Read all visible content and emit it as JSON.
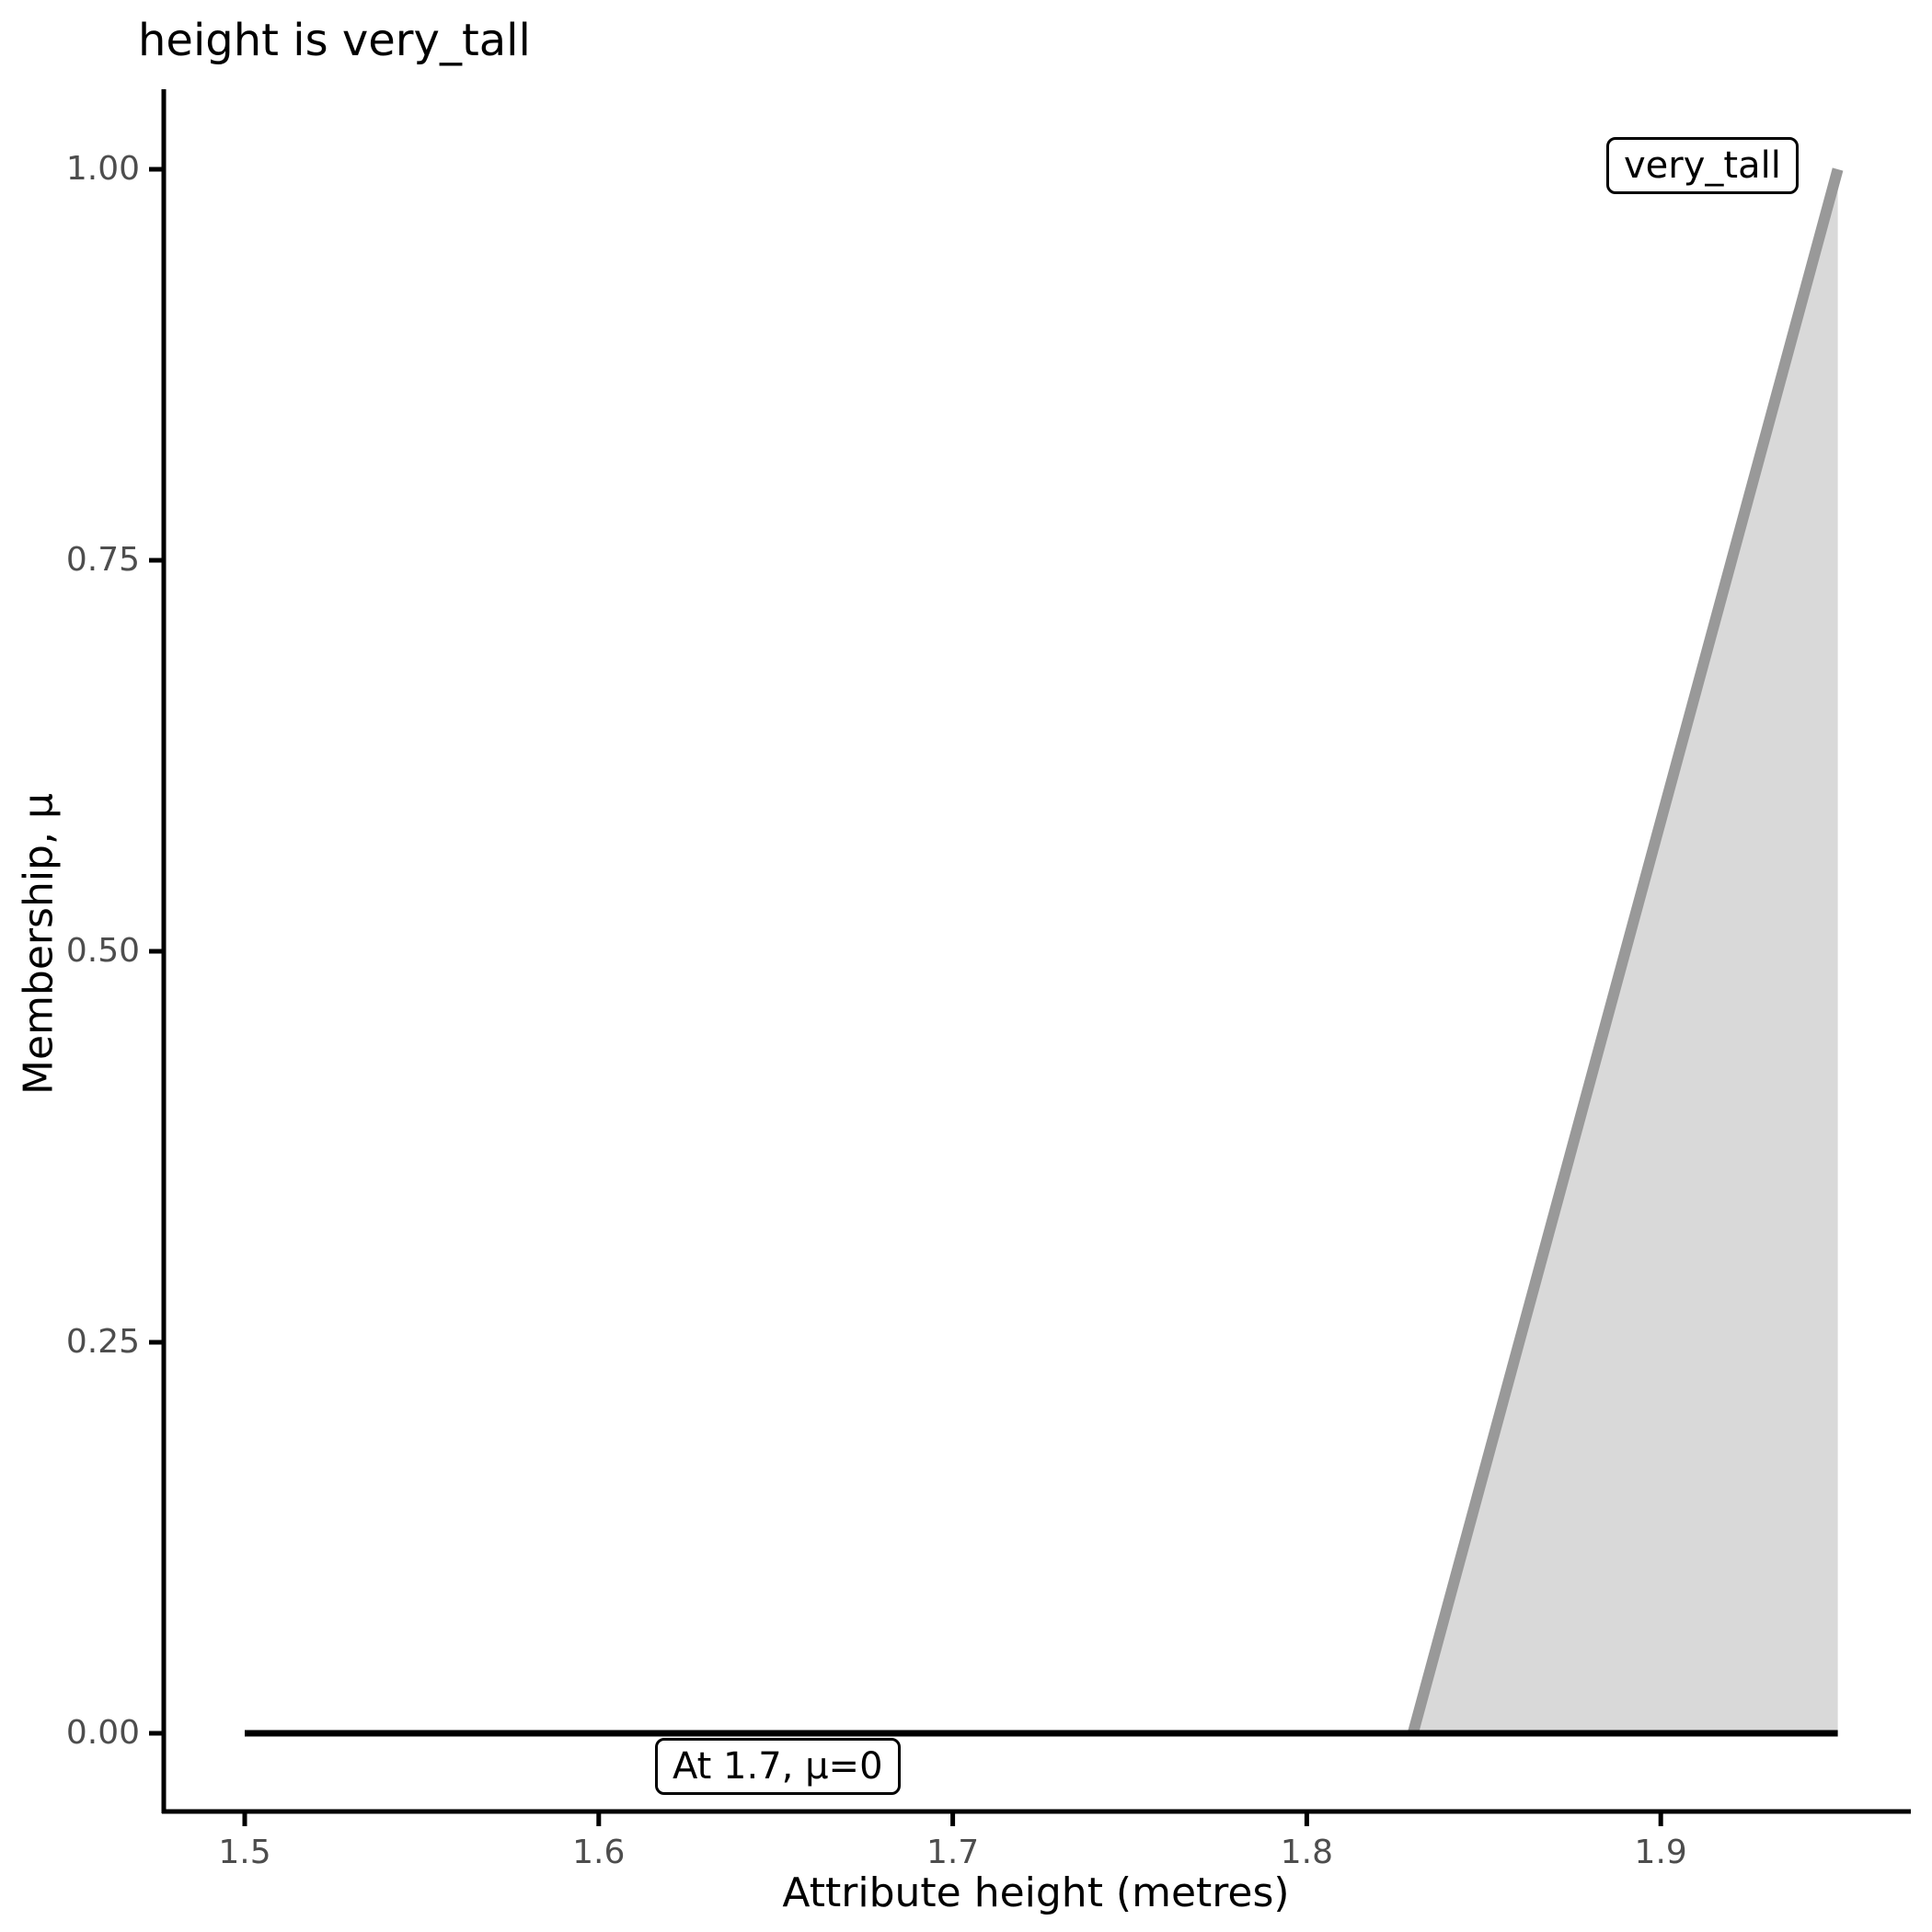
{
  "title": "height is very_tall",
  "x_axis": {
    "label": "Attribute height (metres)",
    "ticks": [
      {
        "value": 1.5,
        "label": "1.5"
      },
      {
        "value": 1.6,
        "label": "1.6"
      },
      {
        "value": 1.7,
        "label": "1.7"
      },
      {
        "value": 1.8,
        "label": "1.8"
      },
      {
        "value": 1.9,
        "label": "1.9"
      }
    ]
  },
  "y_axis": {
    "label": "Membership, μ",
    "ticks": [
      {
        "value": 0.0,
        "label": "0.00"
      },
      {
        "value": 0.25,
        "label": "0.25"
      },
      {
        "value": 0.5,
        "label": "0.50"
      },
      {
        "value": 0.75,
        "label": "0.75"
      },
      {
        "value": 1.0,
        "label": "1.00"
      }
    ]
  },
  "annotations": {
    "very_tall": {
      "text": "very_tall"
    },
    "at_17": {
      "text": "At 1.7, μ=0"
    }
  },
  "colors": {
    "membership_line": "#999999",
    "area_fill": "#d9d9d9",
    "zero_line": "#000000",
    "axis_line": "#000000",
    "tick_label": "#4d4d4d",
    "annotation_border": "#000000",
    "background": "#ffffff"
  },
  "chart_data": {
    "type": "area",
    "title": "height is very_tall",
    "xlabel": "Attribute height (metres)",
    "ylabel": "Membership, μ",
    "xlim": [
      1.4775,
      1.9725
    ],
    "ylim": [
      -0.05,
      1.05
    ],
    "grid": false,
    "legend_position": "none",
    "series": [
      {
        "name": "very_tall",
        "membership_function_points": [
          [
            1.5,
            0
          ],
          [
            1.83,
            0
          ],
          [
            1.95,
            1
          ]
        ]
      }
    ],
    "rendered_shapes": {
      "gray_line_points": [
        [
          1.83,
          0
        ],
        [
          1.95,
          1
        ]
      ],
      "zero_membership_line_points": [
        [
          1.5,
          0
        ],
        [
          1.95,
          0
        ]
      ],
      "area_polygon_points": [
        [
          1.83,
          0
        ],
        [
          1.95,
          1
        ],
        [
          1.95,
          0
        ]
      ]
    },
    "annotation_value": {
      "at_x": 1.7,
      "mu": 0
    }
  }
}
